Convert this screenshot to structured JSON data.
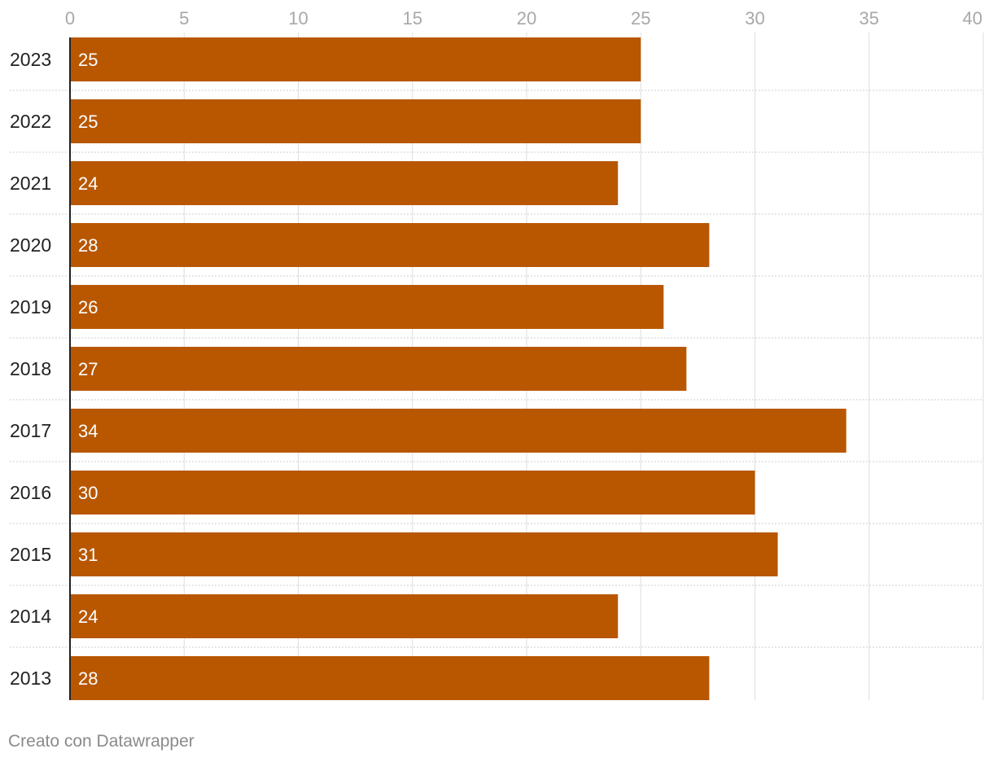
{
  "chart_data": {
    "type": "bar",
    "orientation": "horizontal",
    "categories": [
      "2023",
      "2022",
      "2021",
      "2020",
      "2019",
      "2018",
      "2017",
      "2016",
      "2015",
      "2014",
      "2013"
    ],
    "values": [
      25,
      25,
      24,
      28,
      26,
      27,
      34,
      30,
      31,
      24,
      28
    ],
    "data_labels": [
      "25",
      "25",
      "24",
      "28",
      "26",
      "27",
      "34",
      "30",
      "31",
      "24",
      "28"
    ],
    "x_ticks": [
      0,
      5,
      10,
      15,
      20,
      25,
      30,
      35,
      40
    ],
    "xlim": [
      0,
      40
    ],
    "x_axis_position": "top",
    "grid": true,
    "bar_color": "#b85700",
    "label_color": "#ffffff"
  },
  "footer": {
    "credit": "Creato con Datawrapper"
  }
}
